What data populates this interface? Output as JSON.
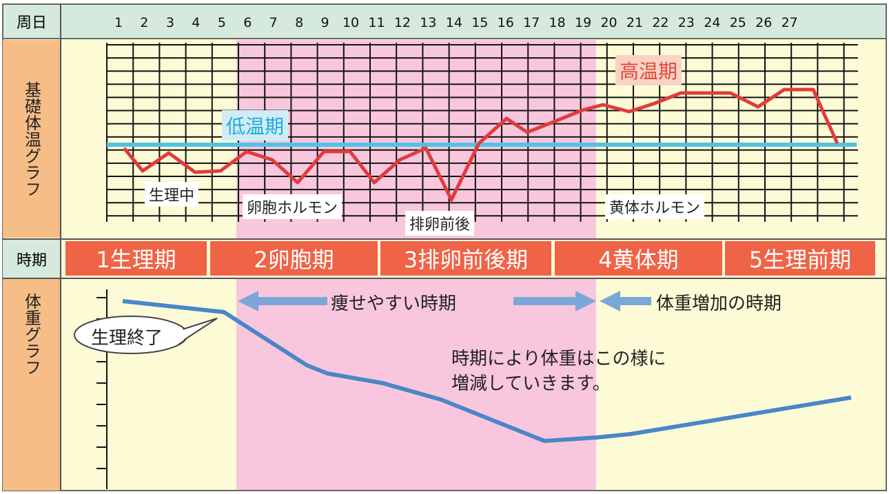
{
  "header": {
    "label": "周日",
    "days": [
      1,
      2,
      3,
      4,
      5,
      6,
      7,
      8,
      9,
      10,
      11,
      12,
      13,
      14,
      15,
      16,
      17,
      18,
      19,
      20,
      21,
      22,
      23,
      24,
      25,
      26,
      27
    ]
  },
  "rows": {
    "temperature": "基礎体温グラフ",
    "phase": "時期",
    "weight": "体重グラフ"
  },
  "temperature": {
    "high": "高温期",
    "low": "低温期",
    "menstruation": "生理中",
    "follicle_hormone": "卵胞ホルモン",
    "ovulation": "排卵前後",
    "luteal_hormone": "黄体ホルモン"
  },
  "phases": [
    "1生理期",
    "2卵胞期",
    "3排卵前後期",
    "4黄体期",
    "5生理前期"
  ],
  "weight": {
    "easy_loss": "痩せやすい時期",
    "gain": "体重増加の時期",
    "period_end": "生理終了",
    "note_line1": "時期により体重はこの様に",
    "note_line2": "増減していきます。"
  }
}
